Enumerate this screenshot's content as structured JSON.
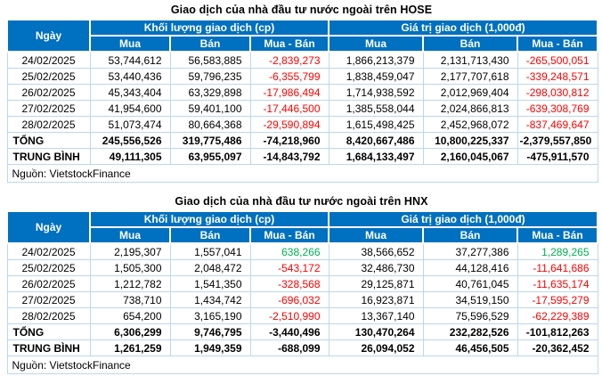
{
  "colors": {
    "header_bg": "#0070C0",
    "grid": "#BDD7EE",
    "negative": "#FF0000",
    "positive": "#00B050"
  },
  "chart_data": [
    {
      "type": "table",
      "title": "Giao dịch của nhà đầu tư nước ngoài trên HOSE",
      "col_groups": [
        "Ngày",
        "Khối lượng giao dịch (cp)",
        "Giá trị giao dịch (1,000đ)"
      ],
      "sub_headers": [
        "Mua",
        "Bán",
        "Mua - Bán",
        "Mua",
        "Bán",
        "Mua - Bán"
      ],
      "rows": [
        [
          "24/02/2025",
          "53,744,612",
          "56,583,885",
          "-2,839,273",
          "1,866,213,379",
          "2,131,713,430",
          "-265,500,051"
        ],
        [
          "25/02/2025",
          "53,440,436",
          "59,796,235",
          "-6,355,799",
          "1,838,459,047",
          "2,177,707,618",
          "-339,248,571"
        ],
        [
          "26/02/2025",
          "45,343,404",
          "63,329,898",
          "-17,986,494",
          "1,714,938,592",
          "2,012,969,404",
          "-298,030,812"
        ],
        [
          "27/02/2025",
          "41,954,600",
          "59,401,100",
          "-17,446,500",
          "1,385,558,044",
          "2,024,866,813",
          "-639,308,769"
        ],
        [
          "28/02/2025",
          "51,073,474",
          "80,664,368",
          "-29,590,894",
          "1,615,498,425",
          "2,452,968,072",
          "-837,469,647"
        ]
      ],
      "total_row": [
        "TỔNG",
        "245,556,526",
        "319,775,486",
        "-74,218,960",
        "8,420,667,486",
        "10,800,225,337",
        "-2,379,557,850"
      ],
      "average_row": [
        "TRUNG BÌNH",
        "49,111,305",
        "63,955,097",
        "-14,843,792",
        "1,684,133,497",
        "2,160,045,067",
        "-475,911,570"
      ],
      "source": "Nguồn: VietstockFinance"
    },
    {
      "type": "table",
      "title": "Giao dịch của nhà đầu tư nước ngoài trên HNX",
      "col_groups": [
        "Ngày",
        "Khối lượng giao dịch (cp)",
        "Giá trị giao dịch (1,000đ)"
      ],
      "sub_headers": [
        "Mua",
        "Bán",
        "Mua - Bán",
        "Mua",
        "Bán",
        "Mua - Bán"
      ],
      "rows": [
        [
          "24/02/2025",
          "2,195,307",
          "1,557,041",
          "638,266",
          "38,566,652",
          "37,277,386",
          "1,289,265"
        ],
        [
          "25/02/2025",
          "1,505,300",
          "2,048,472",
          "-543,172",
          "32,486,730",
          "44,128,416",
          "-11,641,686"
        ],
        [
          "26/02/2025",
          "1,212,782",
          "1,541,350",
          "-328,568",
          "29,125,871",
          "40,761,045",
          "-11,635,174"
        ],
        [
          "27/02/2025",
          "738,710",
          "1,434,742",
          "-696,032",
          "16,923,871",
          "34,519,150",
          "-17,595,279"
        ],
        [
          "28/02/2025",
          "654,200",
          "3,165,190",
          "-2,510,990",
          "13,367,140",
          "75,596,529",
          "-62,229,389"
        ]
      ],
      "total_row": [
        "TỔNG",
        "6,306,299",
        "9,746,795",
        "-3,440,496",
        "130,470,264",
        "232,282,526",
        "-101,812,263"
      ],
      "average_row": [
        "TRUNG BÌNH",
        "1,261,259",
        "1,949,359",
        "-688,099",
        "26,094,052",
        "46,456,505",
        "-20,362,452"
      ],
      "source": "Nguồn: VietstockFinance"
    }
  ]
}
